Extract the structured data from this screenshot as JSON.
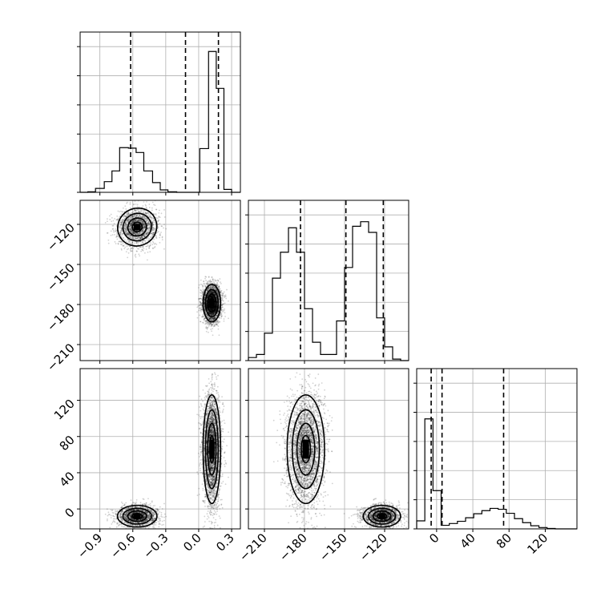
{
  "chart_data": {
    "type": "corner",
    "title": "",
    "parameters": [
      "",
      "",
      ""
    ],
    "ranges": [
      [
        -1.08,
        0.38
      ],
      [
        -222,
        -102
      ],
      [
        -22,
        155
      ]
    ],
    "ticks": [
      {
        "values": [
          -0.9,
          -0.6,
          -0.3,
          0.0,
          0.3
        ],
        "labels": [
          "−0.9",
          "−0.6",
          "−0.3",
          "0.0",
          "0.3"
        ]
      },
      {
        "values": [
          -210,
          -180,
          -150,
          -120
        ],
        "labels": [
          "−210",
          "−180",
          "−150",
          "−120"
        ]
      },
      {
        "values": [
          0,
          40,
          80,
          120
        ],
        "labels": [
          "0",
          "40",
          "80",
          "120"
        ]
      }
    ],
    "quantile_lines": [
      [
        -0.62,
        -0.12,
        0.18
      ],
      [
        -183,
        -149,
        -121
      ],
      [
        -6,
        6,
        74
      ]
    ],
    "histograms": [
      {
        "bin_edges": [
          -1.08,
          -1.01,
          -0.94,
          -0.86,
          -0.79,
          -0.72,
          -0.64,
          -0.57,
          -0.5,
          -0.42,
          -0.35,
          -0.28,
          -0.2,
          -0.13,
          -0.06,
          0.01,
          0.09,
          0.16,
          0.23,
          0.3,
          0.38
        ],
        "counts": [
          0,
          5,
          40,
          110,
          220,
          460,
          455,
          410,
          220,
          100,
          25,
          5,
          0,
          0,
          0,
          450,
          1450,
          1070,
          30,
          0
        ],
        "ymax": 1650
      },
      {
        "bin_edges": [
          -222,
          -216,
          -210,
          -204,
          -198,
          -192,
          -186,
          -180,
          -174,
          -168,
          -162,
          -156,
          -150,
          -144,
          -138,
          -132,
          -126,
          -120,
          -114,
          -108,
          -102
        ],
        "counts": [
          20,
          40,
          180,
          540,
          710,
          870,
          710,
          340,
          120,
          40,
          40,
          260,
          610,
          880,
          910,
          840,
          280,
          90,
          10,
          0,
          0
        ],
        "ymax": 1050
      },
      {
        "bin_edges": [
          -22,
          -13,
          -4,
          5,
          14,
          23,
          32,
          41,
          50,
          59,
          68,
          77,
          86,
          95,
          104,
          113,
          122,
          131,
          140,
          149,
          155
        ],
        "counts": [
          180,
          2470,
          860,
          80,
          120,
          170,
          250,
          340,
          410,
          460,
          440,
          350,
          230,
          140,
          70,
          30,
          10,
          0,
          0,
          0
        ],
        "ymax": 3600
      }
    ],
    "scatter_modes": [
      {
        "x": -0.56,
        "y": -122,
        "z": -8
      },
      {
        "x": 0.12,
        "y": -179,
        "z": 66
      }
    ]
  }
}
